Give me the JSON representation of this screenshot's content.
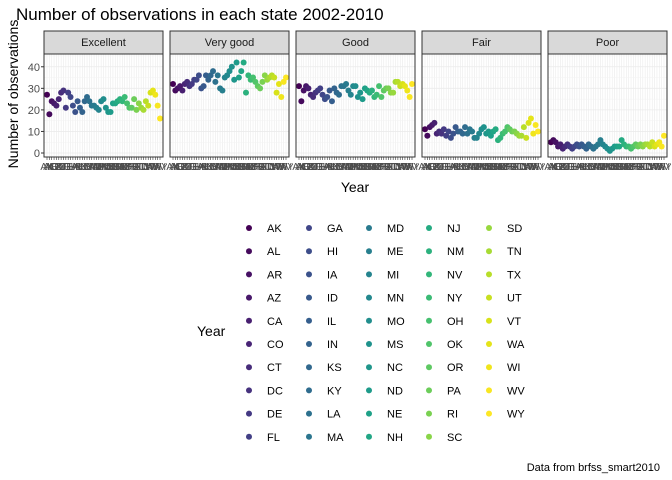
{
  "title": "Number of observations in each state 2002-2010",
  "caption": "Data from brfss_smart2010",
  "chart_data": {
    "type": "scatter",
    "title": "Number of observations in each state 2002-2010",
    "xlabel": "Year",
    "ylabel": "Number of observations",
    "ylim": [
      0,
      45
    ],
    "yticks": [
      0,
      10,
      20,
      30,
      40
    ],
    "grid": true,
    "facet_by": "response",
    "panels": [
      "Excellent",
      "Very good",
      "Good",
      "Fair",
      "Poor"
    ],
    "legend": {
      "title": "Year",
      "position": "bottom",
      "columns": 5,
      "entries": [
        "AK",
        "AL",
        "AR",
        "AZ",
        "CA",
        "CO",
        "CT",
        "DC",
        "DE",
        "FL",
        "GA",
        "HI",
        "IA",
        "ID",
        "IL",
        "IN",
        "KS",
        "KY",
        "LA",
        "MA",
        "MD",
        "ME",
        "MI",
        "MN",
        "MO",
        "MS",
        "NC",
        "ND",
        "NE",
        "NH",
        "NJ",
        "NM",
        "NV",
        "NY",
        "OH",
        "OK",
        "OR",
        "PA",
        "RI",
        "SC",
        "SD",
        "TN",
        "TX",
        "UT",
        "VT",
        "WA",
        "WI",
        "WV",
        "WY"
      ],
      "colors": [
        "#440154",
        "#450a5c",
        "#471164",
        "#48186a",
        "#481f70",
        "#482475",
        "#472c7a",
        "#46327e",
        "#443983",
        "#423f85",
        "#404688",
        "#3d4d8a",
        "#3b528b",
        "#38598c",
        "#355e8d",
        "#33638d",
        "#31688e",
        "#2f6c8e",
        "#2d718e",
        "#2b758e",
        "#297a8e",
        "#277f8e",
        "#25848e",
        "#23888e",
        "#218e8d",
        "#1f928c",
        "#1f968b",
        "#1e9b8a",
        "#1fa188",
        "#21a685",
        "#25ab82",
        "#2cb17e",
        "#32b67a",
        "#3bbb75",
        "#46c06f",
        "#50c46a",
        "#5ec962",
        "#6ccd5a",
        "#7ad151",
        "#89d548",
        "#98d83e",
        "#a8db34",
        "#b8de29",
        "#c8e020",
        "#d8e219",
        "#e5e419",
        "#f0e51c",
        "#f8e621",
        "#fde725"
      ]
    },
    "series": [
      {
        "panel": "Excellent",
        "values": [
          27,
          18,
          24,
          23,
          22,
          25,
          28,
          29,
          21,
          28,
          26,
          22,
          19,
          24,
          21,
          19,
          24,
          26,
          24,
          22,
          22,
          21,
          20,
          24,
          25,
          21,
          19,
          19,
          23,
          23,
          24,
          25,
          24,
          26,
          23,
          21,
          21,
          25,
          20,
          23,
          21,
          20,
          24,
          22,
          28,
          29,
          27,
          22,
          16
        ]
      },
      {
        "panel": "Very good",
        "values": [
          32,
          29,
          30,
          31,
          29,
          32,
          33,
          31,
          32,
          34,
          34,
          36,
          30,
          31,
          36,
          34,
          36,
          38,
          33,
          36,
          30,
          29,
          35,
          36,
          38,
          40,
          34,
          42,
          35,
          38,
          42,
          28,
          36,
          34,
          35,
          33,
          31,
          30,
          33,
          36,
          34,
          35,
          36,
          35,
          28,
          32,
          26,
          33,
          35
        ]
      },
      {
        "panel": "Good",
        "values": [
          31,
          24,
          29,
          31,
          30,
          27,
          26,
          28,
          29,
          30,
          27,
          25,
          26,
          29,
          24,
          30,
          28,
          27,
          31,
          31,
          32,
          29,
          27,
          31,
          31,
          26,
          28,
          25,
          30,
          29,
          28,
          29,
          26,
          27,
          31,
          26,
          29,
          30,
          30,
          28,
          28,
          33,
          33,
          31,
          32,
          31,
          29,
          26,
          32
        ]
      },
      {
        "panel": "Fair",
        "values": [
          11,
          8,
          12,
          13,
          14,
          9,
          10,
          9,
          11,
          8,
          10,
          7,
          9,
          12,
          10,
          10,
          9,
          12,
          9,
          11,
          10,
          7,
          7,
          9,
          11,
          12,
          9,
          10,
          8,
          10,
          11,
          6,
          7,
          9,
          10,
          12,
          11,
          10,
          10,
          9,
          8,
          8,
          12,
          7,
          14,
          16,
          9,
          13,
          10
        ]
      },
      {
        "panel": "Poor",
        "values": [
          5,
          6,
          5,
          3,
          4,
          2,
          3,
          4,
          3,
          2,
          3,
          4,
          3,
          4,
          3,
          2,
          4,
          3,
          2,
          3,
          4,
          6,
          4,
          3,
          2,
          1,
          2,
          3,
          3,
          3,
          6,
          4,
          3,
          3,
          2,
          3,
          4,
          3,
          4,
          3,
          4,
          4,
          3,
          5,
          3,
          4,
          5,
          3,
          8
        ]
      }
    ]
  }
}
